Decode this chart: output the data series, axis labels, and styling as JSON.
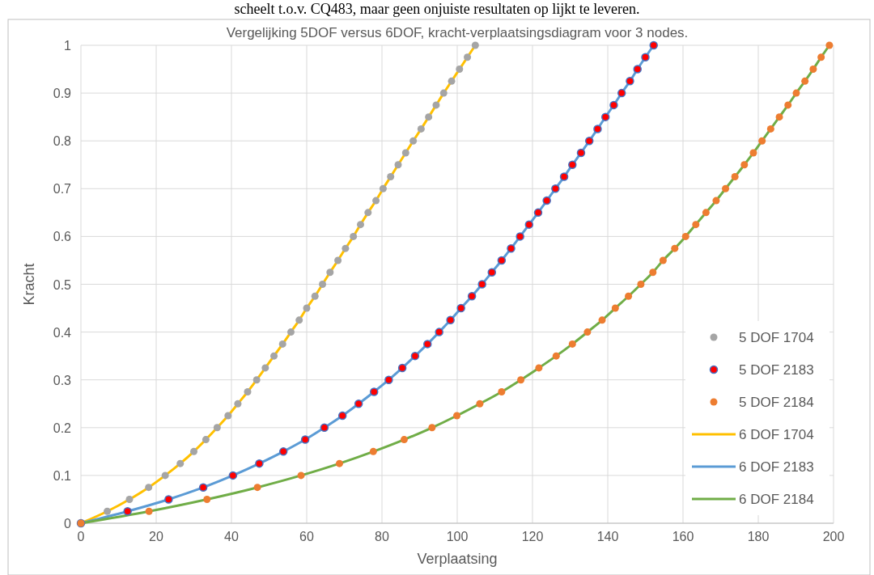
{
  "chart_data": {
    "type": "scatter",
    "title": "Vergelijking 5DOF versus 6DOF, kracht-verplaatsingsdiagram voor 3 nodes.",
    "xlabel": "Verplaatsing",
    "ylabel": "Kracht",
    "annotations": [
      "scheelt t.o.v. CQ483, maar geen onjuiste resultaten op lijkt te leveren."
    ],
    "xlim": [
      0,
      200
    ],
    "xticks": [
      0,
      20,
      40,
      60,
      80,
      100,
      120,
      140,
      160,
      180,
      200
    ],
    "ylim": [
      0,
      1
    ],
    "yticks": [
      0,
      0.1,
      0.2,
      0.3,
      0.4,
      0.5,
      0.6,
      0.7,
      0.8,
      0.9,
      1
    ],
    "grid": true,
    "legend": "bottom right",
    "series": [
      {
        "name": "5 DOF 1704",
        "marker": "circle",
        "color": "#a5a5a5",
        "x": [
          null,
          7.0,
          12.9,
          18.0,
          22.4,
          26.4,
          30.0,
          33.2,
          36.2,
          39.1,
          41.7,
          44.3,
          46.7,
          49.0,
          51.3,
          53.6,
          55.8,
          58.0,
          60.0,
          62.2,
          64.2,
          66.2,
          68.3,
          70.3,
          72.4,
          74.3,
          76.3,
          78.4,
          80.3,
          82.3,
          84.3,
          86.3,
          88.3,
          90.4,
          92.4,
          94.4,
          96.4,
          98.5,
          100.6,
          102.7,
          104.8
        ],
        "values": [
          null,
          0.025,
          0.05,
          0.075,
          0.1,
          0.125,
          0.15,
          0.175,
          0.2,
          0.225,
          0.25,
          0.275,
          0.3,
          0.325,
          0.35,
          0.375,
          0.4,
          0.425,
          0.45,
          0.475,
          0.5,
          0.525,
          0.55,
          0.575,
          0.6,
          0.625,
          0.65,
          0.675,
          0.7,
          0.725,
          0.75,
          0.775,
          0.8,
          0.825,
          0.85,
          0.875,
          0.9,
          0.925,
          0.95,
          0.975,
          1
        ]
      },
      {
        "name": "5 DOF 2183",
        "marker": "circle",
        "color": "#ff0000",
        "x": [
          0,
          12.4,
          23.3,
          32.5,
          40.4,
          47.4,
          53.8,
          59.6,
          64.7,
          69.5,
          73.8,
          77.9,
          81.8,
          85.4,
          88.8,
          92.1,
          95.2,
          98.2,
          101.0,
          103.9,
          106.6,
          109.2,
          111.8,
          114.3,
          116.7,
          119.1,
          121.5,
          123.8,
          126.1,
          128.4,
          130.6,
          132.9,
          135.1,
          137.3,
          139.4,
          141.6,
          143.7,
          145.9,
          147.9,
          150.0,
          152.2
        ],
        "values": [
          0,
          0.025,
          0.05,
          0.075,
          0.1,
          0.125,
          0.15,
          0.175,
          0.2,
          0.225,
          0.25,
          0.275,
          0.3,
          0.325,
          0.35,
          0.375,
          0.4,
          0.425,
          0.45,
          0.475,
          0.5,
          0.525,
          0.55,
          0.575,
          0.6,
          0.625,
          0.65,
          0.675,
          0.7,
          0.725,
          0.75,
          0.775,
          0.8,
          0.825,
          0.85,
          0.875,
          0.9,
          0.925,
          0.95,
          0.975,
          1
        ]
      },
      {
        "name": "5 DOF 2184",
        "marker": "circle",
        "color": "#ed7d31",
        "x": [
          0,
          18.1,
          33.5,
          46.9,
          58.5,
          68.7,
          77.7,
          85.9,
          93.3,
          99.9,
          106.0,
          111.8,
          116.9,
          121.7,
          126.3,
          130.6,
          134.6,
          138.5,
          142.0,
          145.5,
          148.8,
          152.0,
          154.7,
          157.8,
          160.7,
          163.4,
          166.1,
          168.8,
          171.3,
          173.8,
          176.3,
          178.7,
          181.0,
          183.3,
          185.6,
          187.9,
          190.1,
          192.4,
          194.6,
          196.7,
          198.9
        ],
        "values": [
          0,
          0.025,
          0.05,
          0.075,
          0.1,
          0.125,
          0.15,
          0.175,
          0.2,
          0.225,
          0.25,
          0.275,
          0.3,
          0.325,
          0.35,
          0.375,
          0.4,
          0.425,
          0.45,
          0.475,
          0.5,
          0.525,
          0.55,
          0.575,
          0.6,
          0.625,
          0.65,
          0.675,
          0.7,
          0.725,
          0.75,
          0.775,
          0.8,
          0.825,
          0.85,
          0.875,
          0.9,
          0.925,
          0.95,
          0.975,
          1
        ]
      },
      {
        "name": "6 DOF 1704",
        "type": "line",
        "marker": "none",
        "color": "#ffc000",
        "x": [
          0,
          7.0,
          12.9,
          18.0,
          22.4,
          26.4,
          30.0,
          33.2,
          36.2,
          39.1,
          41.7,
          44.3,
          46.7,
          49.0,
          51.3,
          53.6,
          55.8,
          58.0,
          60.0,
          62.2,
          64.2,
          66.2,
          68.3,
          70.3,
          72.4,
          74.3,
          76.3,
          78.4,
          80.3,
          82.3,
          84.3,
          86.3,
          88.3,
          90.4,
          92.4,
          94.4,
          96.4,
          98.5,
          100.6,
          102.7,
          104.8
        ],
        "values": [
          0,
          0.025,
          0.05,
          0.075,
          0.1,
          0.125,
          0.15,
          0.175,
          0.2,
          0.225,
          0.25,
          0.275,
          0.3,
          0.325,
          0.35,
          0.375,
          0.4,
          0.425,
          0.45,
          0.475,
          0.5,
          0.525,
          0.55,
          0.575,
          0.6,
          0.625,
          0.65,
          0.675,
          0.7,
          0.725,
          0.75,
          0.775,
          0.8,
          0.825,
          0.85,
          0.875,
          0.9,
          0.925,
          0.95,
          0.975,
          1
        ]
      },
      {
        "name": "6 DOF 2183",
        "type": "line",
        "marker": "none",
        "color": "#5b9bd5",
        "x": [
          0,
          12.4,
          23.3,
          32.5,
          40.4,
          47.4,
          53.8,
          59.6,
          64.7,
          69.5,
          73.8,
          77.9,
          81.8,
          85.4,
          88.8,
          92.1,
          95.2,
          98.2,
          101.0,
          103.9,
          106.6,
          109.2,
          111.8,
          114.3,
          116.7,
          119.1,
          121.5,
          123.8,
          126.1,
          128.4,
          130.6,
          132.9,
          135.1,
          137.3,
          139.4,
          141.6,
          143.7,
          145.9,
          147.9,
          150.0,
          152.2
        ],
        "values": [
          0,
          0.025,
          0.05,
          0.075,
          0.1,
          0.125,
          0.15,
          0.175,
          0.2,
          0.225,
          0.25,
          0.275,
          0.3,
          0.325,
          0.35,
          0.375,
          0.4,
          0.425,
          0.45,
          0.475,
          0.5,
          0.525,
          0.55,
          0.575,
          0.6,
          0.625,
          0.65,
          0.675,
          0.7,
          0.725,
          0.75,
          0.775,
          0.8,
          0.825,
          0.85,
          0.875,
          0.9,
          0.925,
          0.95,
          0.975,
          1
        ]
      },
      {
        "name": "6 DOF 2184",
        "type": "line",
        "marker": "none",
        "color": "#70ad47",
        "x": [
          0,
          18.1,
          33.5,
          46.9,
          58.5,
          68.7,
          77.7,
          85.9,
          93.3,
          99.9,
          106.0,
          111.8,
          116.9,
          121.7,
          126.3,
          130.6,
          134.6,
          138.5,
          142.0,
          145.5,
          148.8,
          152.0,
          154.7,
          157.8,
          160.7,
          163.4,
          166.1,
          168.8,
          171.3,
          173.8,
          176.3,
          178.7,
          181.0,
          183.3,
          185.6,
          187.9,
          190.1,
          192.4,
          194.6,
          196.7,
          198.9
        ],
        "values": [
          0,
          0.025,
          0.05,
          0.075,
          0.1,
          0.125,
          0.15,
          0.175,
          0.2,
          0.225,
          0.25,
          0.275,
          0.3,
          0.325,
          0.35,
          0.375,
          0.4,
          0.425,
          0.45,
          0.475,
          0.5,
          0.525,
          0.55,
          0.575,
          0.6,
          0.625,
          0.65,
          0.675,
          0.7,
          0.725,
          0.75,
          0.775,
          0.8,
          0.825,
          0.85,
          0.875,
          0.9,
          0.925,
          0.95,
          0.975,
          1
        ]
      }
    ]
  }
}
